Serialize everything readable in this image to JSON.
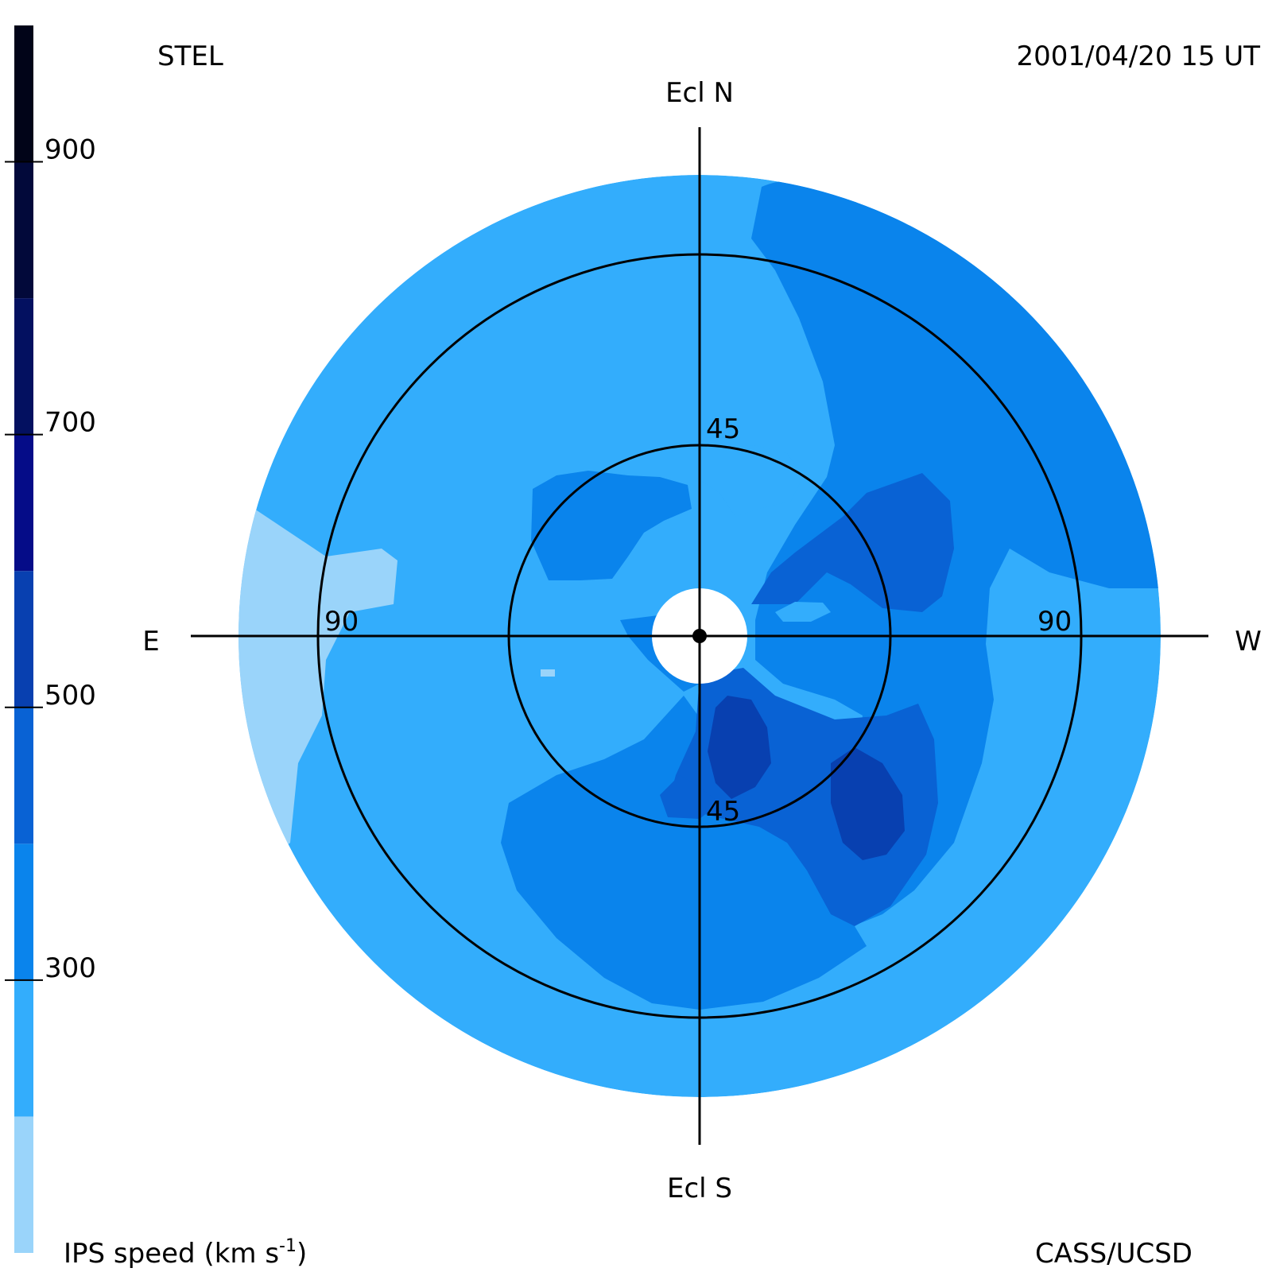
{
  "header": {
    "source": "STEL",
    "timestamp": "2001/04/20 15 UT"
  },
  "footer": {
    "quantity_label": "IPS speed (km s",
    "quantity_exponent": "-1",
    "quantity_close": ")",
    "credit": "CASS/UCSD"
  },
  "directions": {
    "north": "Ecl N",
    "south": "Ecl S",
    "east": "E",
    "west": "W"
  },
  "elongation_rings": [
    {
      "value": 45,
      "labels": [
        "45",
        "45"
      ]
    },
    {
      "value": 90,
      "labels": [
        "90",
        "90"
      ]
    }
  ],
  "colorbar": {
    "ticks": [
      {
        "value": 300,
        "label": "300"
      },
      {
        "value": 500,
        "label": "500"
      },
      {
        "value": 700,
        "label": "700"
      },
      {
        "value": 900,
        "label": "900"
      }
    ],
    "levels": [
      {
        "min": 100,
        "max": 200,
        "color": "#9ad4fa"
      },
      {
        "min": 200,
        "max": 300,
        "color": "#33adfc"
      },
      {
        "min": 300,
        "max": 400,
        "color": "#0a84ec"
      },
      {
        "min": 400,
        "max": 500,
        "color": "#0962d4"
      },
      {
        "min": 500,
        "max": 600,
        "color": "#0840b0"
      },
      {
        "min": 600,
        "max": 700,
        "color": "#050c88"
      },
      {
        "min": 700,
        "max": 800,
        "color": "#031060"
      },
      {
        "min": 800,
        "max": 900,
        "color": "#02093a"
      },
      {
        "min": 900,
        "max": 1000,
        "color": "#010418"
      }
    ]
  },
  "colors": {
    "speed_200_300": "#33adfc",
    "speed_100_200": "#9ad4fa",
    "speed_300_400": "#0a84ec",
    "speed_400_500": "#0962d4",
    "speed_500_600": "#0840b0"
  }
}
